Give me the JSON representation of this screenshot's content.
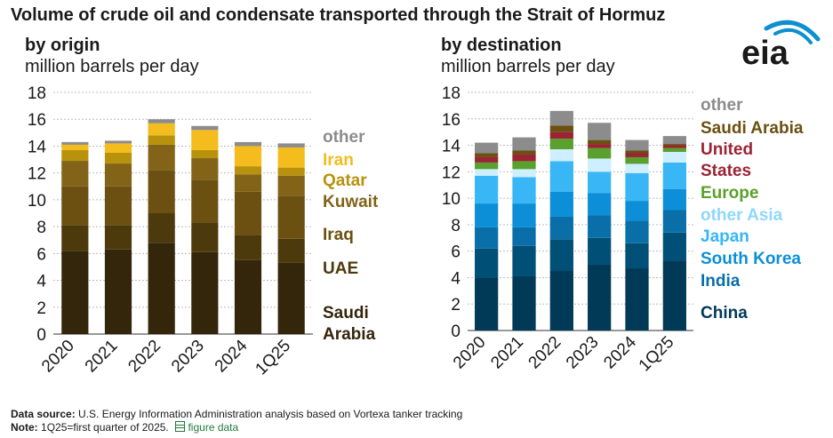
{
  "title": "Volume of crude oil and condensate transported through the Strait of Hormuz",
  "logo": {
    "text": "eia",
    "icon": "eia-logo"
  },
  "footer": {
    "source_label": "Data source:",
    "source_text": "U.S. Energy Information Administration analysis based on Vortexa tanker tracking",
    "note_label": "Note:",
    "note_text": "1Q25=first quarter of 2025.",
    "link_icon": "spreadsheet-icon",
    "link_text": "figure data"
  },
  "chart_data": [
    {
      "type": "bar",
      "stacked": true,
      "subtitle": "by origin",
      "ylabel": "million barrels per day",
      "categories": [
        "2020",
        "2021",
        "2022",
        "2023",
        "2024",
        "1Q25"
      ],
      "ylim": [
        0,
        18
      ],
      "yticks": [
        "0",
        "2",
        "4",
        "6",
        "8",
        "10",
        "12",
        "14",
        "16",
        "18"
      ],
      "grid": true,
      "legend_position": "right",
      "series": [
        {
          "name": "Saudi Arabia",
          "label_lines": [
            "Saudi",
            "Arabia"
          ],
          "color": "#33260a",
          "values": [
            6.2,
            6.3,
            6.8,
            6.1,
            5.5,
            5.3
          ]
        },
        {
          "name": "UAE",
          "label_lines": [
            "UAE"
          ],
          "color": "#4d3a0c",
          "values": [
            1.9,
            1.8,
            2.2,
            2.2,
            1.9,
            1.8
          ]
        },
        {
          "name": "Iraq",
          "label_lines": [
            "Iraq"
          ],
          "color": "#6b5011",
          "values": [
            2.9,
            2.9,
            3.2,
            3.2,
            3.2,
            3.2
          ]
        },
        {
          "name": "Kuwait",
          "label_lines": [
            "Kuwait"
          ],
          "color": "#826317",
          "values": [
            1.9,
            1.7,
            1.9,
            1.6,
            1.3,
            1.5
          ]
        },
        {
          "name": "Qatar",
          "label_lines": [
            "Qatar"
          ],
          "color": "#b8920c",
          "values": [
            0.8,
            0.8,
            0.7,
            0.6,
            0.6,
            0.6
          ]
        },
        {
          "name": "Iran",
          "label_lines": [
            "Iran"
          ],
          "color": "#f4bc1c",
          "values": [
            0.4,
            0.7,
            0.9,
            1.5,
            1.5,
            1.5
          ]
        },
        {
          "name": "other",
          "label_lines": [
            "other"
          ],
          "color": "#8c8c8c",
          "values": [
            0.2,
            0.2,
            0.3,
            0.3,
            0.3,
            0.3
          ]
        }
      ]
    },
    {
      "type": "bar",
      "stacked": true,
      "subtitle": "by destination",
      "ylabel": "million barrels per day",
      "categories": [
        "2020",
        "2021",
        "2022",
        "2023",
        "2024",
        "1Q25"
      ],
      "ylim": [
        0,
        18
      ],
      "yticks": [
        "0",
        "2",
        "4",
        "6",
        "8",
        "10",
        "12",
        "14",
        "16",
        "18"
      ],
      "grid": true,
      "legend_position": "right",
      "series": [
        {
          "name": "China",
          "label_lines": [
            "China"
          ],
          "color": "#003a57",
          "values": [
            4.0,
            4.1,
            4.5,
            5.0,
            4.7,
            5.3
          ]
        },
        {
          "name": "India",
          "label_lines": [
            "India"
          ],
          "color": "#004f76",
          "values": [
            2.2,
            2.3,
            2.4,
            2.0,
            1.9,
            2.1
          ]
        },
        {
          "name": "South Korea",
          "label_lines": [
            "South Korea"
          ],
          "color": "#0a6fa8",
          "values": [
            1.6,
            1.4,
            1.7,
            1.7,
            1.7,
            1.7
          ]
        },
        {
          "name": "Japan",
          "label_lines": [
            "Japan"
          ],
          "color": "#0c8fd6",
          "values": [
            1.8,
            1.8,
            1.9,
            1.7,
            1.5,
            1.6
          ]
        },
        {
          "name": "other Asia",
          "label_lines": [
            "other Asia"
          ],
          "color": "#38b6f5",
          "values": [
            2.1,
            2.0,
            2.3,
            1.6,
            2.1,
            2.0
          ]
        },
        {
          "name": "Europe",
          "label_lines": [
            "Europe"
          ],
          "color": "#cdefff",
          "values": [
            0.5,
            0.6,
            0.9,
            1.0,
            0.7,
            0.8
          ]
        },
        {
          "name": "United States",
          "label_lines": [
            "United",
            "States"
          ],
          "color": "#5aa02c",
          "values": [
            0.5,
            0.6,
            0.8,
            0.8,
            0.5,
            0.3
          ]
        },
        {
          "name": "Saudi Arabia",
          "label_lines": [
            "Saudi Arabia"
          ],
          "color": "#9b2335",
          "values": [
            0.4,
            0.5,
            0.5,
            0.3,
            0.3,
            0.2
          ]
        },
        {
          "name": "other",
          "label_lines": [
            "other"
          ],
          "color": "#6b5011",
          "values": [
            0.3,
            0.3,
            0.5,
            0.3,
            0.2,
            0.1
          ]
        },
        {
          "name": "other_grey",
          "label_lines": [],
          "color": "#8c8c8c",
          "values": [
            0.8,
            1.0,
            1.1,
            1.3,
            0.8,
            0.6
          ]
        }
      ]
    }
  ]
}
